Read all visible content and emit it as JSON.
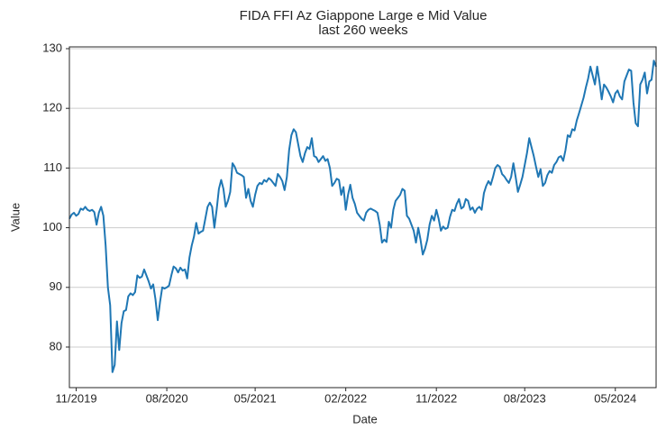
{
  "chart_data": {
    "type": "line",
    "title": "FIDA FFI Az Giappone Large e Mid Value",
    "subtitle": "last 260 weeks",
    "x_label": "Date",
    "y_label": "Value",
    "color": "#1f77b4",
    "grid": true,
    "xlim": [
      0,
      259
    ],
    "ylim": [
      73.2,
      130.3
    ],
    "xticks": [
      {
        "value": 3,
        "label": "11/2019"
      },
      {
        "value": 43,
        "label": "08/2020"
      },
      {
        "value": 82,
        "label": "05/2021"
      },
      {
        "value": 122,
        "label": "02/2022"
      },
      {
        "value": 162,
        "label": "11/2022"
      },
      {
        "value": 201,
        "label": "08/2023"
      },
      {
        "value": 241,
        "label": "05/2024"
      }
    ],
    "yticks": [
      80,
      90,
      100,
      110,
      120,
      130
    ],
    "values": [
      101.5,
      102.2,
      102.5,
      102,
      102.3,
      103.2,
      103,
      103.5,
      103,
      102.8,
      103,
      102.6,
      100.5,
      102.5,
      103.5,
      102,
      97,
      90,
      87,
      75.8,
      77,
      84.3,
      79.5,
      84,
      86,
      86.2,
      88.5,
      89,
      88.7,
      89.2,
      92,
      91.6,
      91.8,
      93,
      92,
      91,
      89.8,
      90.5,
      88,
      84.5,
      87.5,
      90,
      89.8,
      90,
      90.3,
      92,
      93.5,
      93.2,
      92.5,
      93.3,
      92.8,
      93,
      91.5,
      95,
      97,
      98.5,
      100.8,
      99,
      99.3,
      99.5,
      101.5,
      103.5,
      104.2,
      103.5,
      100,
      103,
      106.5,
      108,
      106.5,
      103.5,
      104.5,
      106,
      110.8,
      110.2,
      109.2,
      109,
      108.8,
      108.5,
      105,
      106.5,
      104.5,
      103.5,
      105.5,
      107,
      107.5,
      107.3,
      108,
      107.7,
      108.3,
      108,
      107.5,
      107,
      109,
      108.5,
      107.8,
      106.3,
      108.5,
      113,
      115.5,
      116.5,
      116,
      114,
      112,
      111,
      112.5,
      113.5,
      113.2,
      115,
      112,
      111.8,
      111,
      111.5,
      112,
      111.2,
      111.5,
      110,
      107,
      107.5,
      108.2,
      108,
      105.5,
      106.8,
      103,
      105.5,
      107.2,
      105,
      104,
      102.5,
      102,
      101.5,
      101.2,
      102.5,
      103,
      103.2,
      103,
      102.8,
      102.5,
      100.5,
      97.5,
      98,
      97.6,
      101,
      100,
      103,
      104.5,
      105,
      105.5,
      106.5,
      106.2,
      102,
      101.5,
      100.5,
      99.5,
      97.5,
      100,
      98,
      95.5,
      96.5,
      98,
      100.5,
      102,
      101.2,
      103,
      101.5,
      99.5,
      100.2,
      99.8,
      100,
      101.8,
      103,
      102.8,
      104,
      104.8,
      103.2,
      103.5,
      104.8,
      104.5,
      103,
      103.4,
      102.5,
      103.2,
      103.5,
      103,
      105.8,
      107,
      107.8,
      107.2,
      108.5,
      110,
      110.5,
      110.2,
      109,
      108.6,
      108,
      107.5,
      108.5,
      110.8,
      108.5,
      106,
      107.2,
      108.5,
      110.5,
      112.5,
      115,
      113.5,
      112,
      110.2,
      108.5,
      109.8,
      107,
      107.5,
      108.8,
      109.5,
      109.2,
      110.5,
      111,
      111.8,
      112,
      111.2,
      113,
      115.5,
      115.2,
      116.5,
      116.3,
      118,
      119.2,
      120.5,
      121.8,
      123.5,
      125,
      127,
      125.5,
      124,
      127,
      124.5,
      121.5,
      124,
      123.5,
      122.8,
      122,
      121,
      122.5,
      123,
      122,
      121.5,
      124.5,
      125.5,
      126.5,
      126.3,
      121,
      117.5,
      117,
      124,
      124.8,
      126,
      122.5,
      124.5,
      124.8,
      128,
      127
    ]
  }
}
